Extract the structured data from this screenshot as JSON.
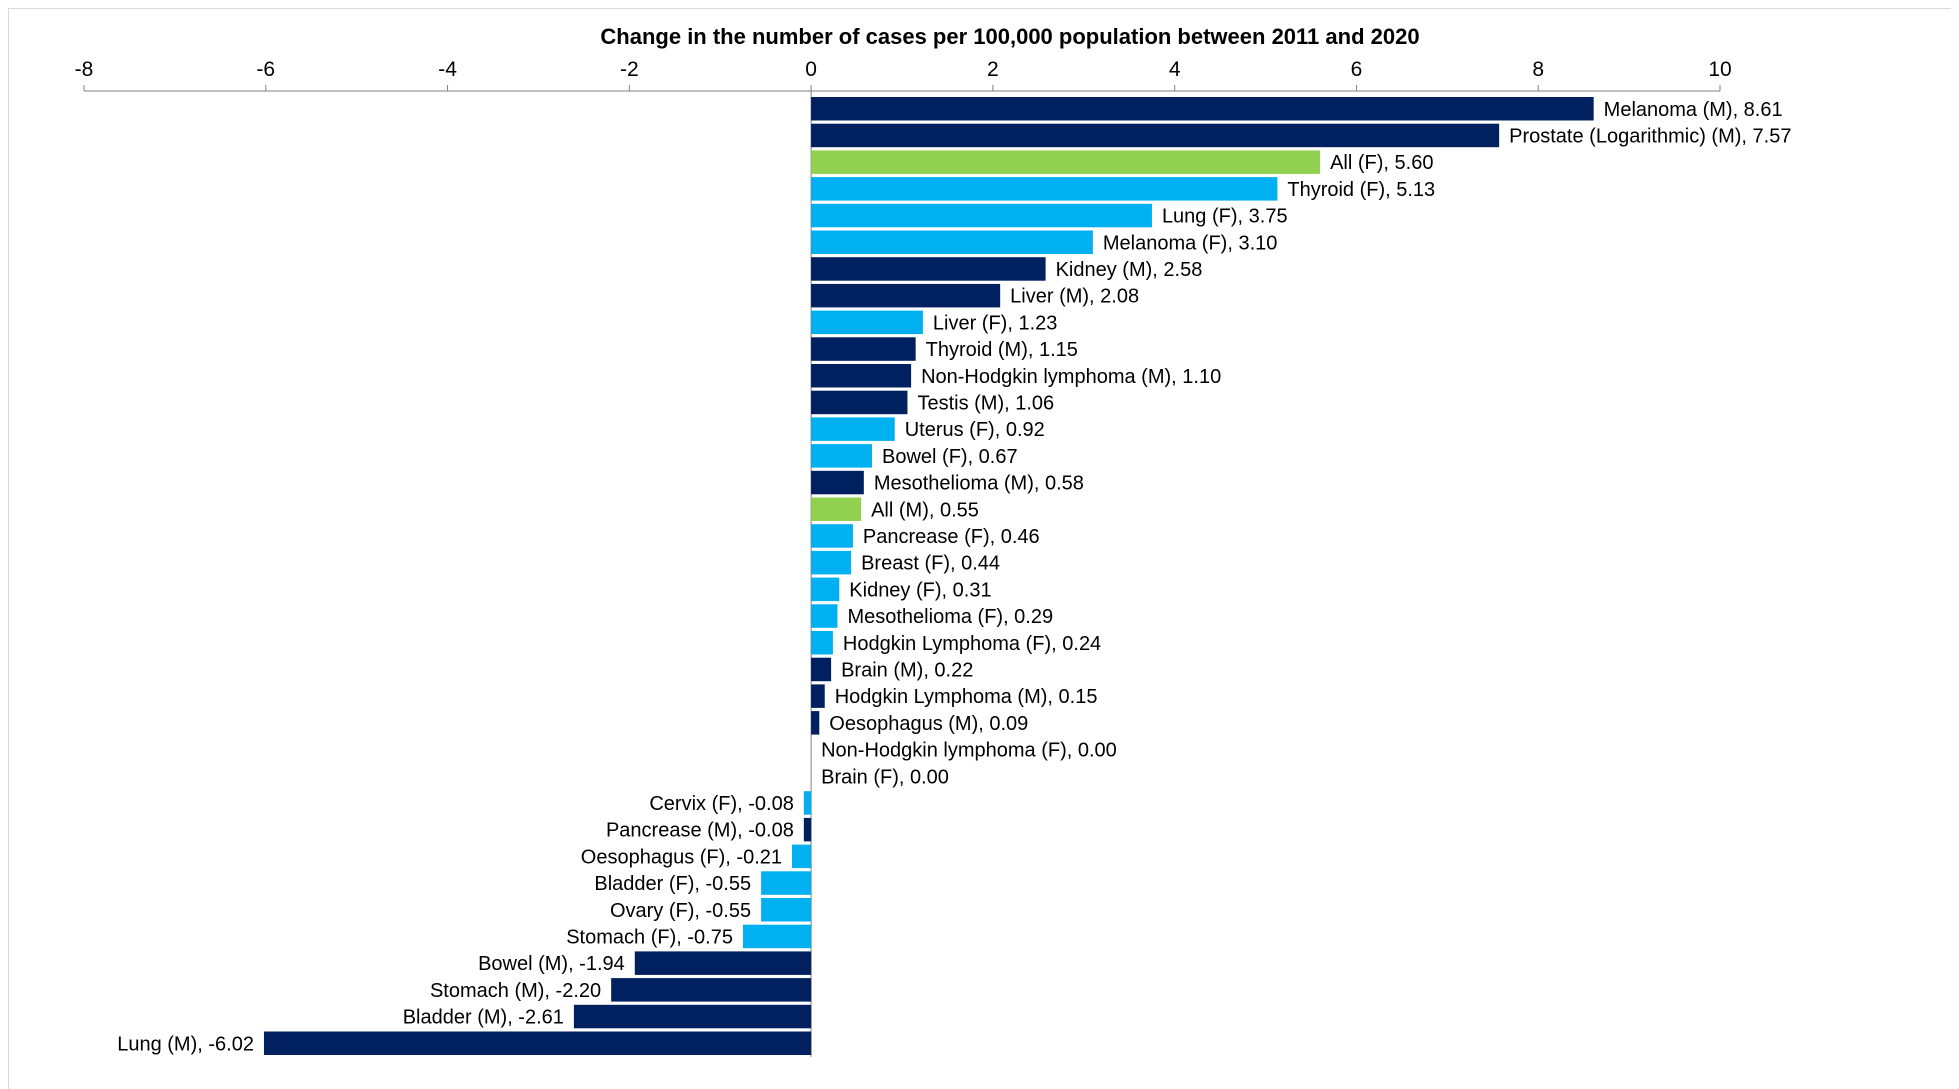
{
  "chart_data": {
    "type": "bar",
    "orientation": "horizontal",
    "title": "Change in the number of cases per 100,000 population between 2011 and 2020",
    "xlim": [
      -8,
      10
    ],
    "x_ticks": [
      "-8",
      "-6",
      "-4",
      "-2",
      "0",
      "2",
      "4",
      "6",
      "8",
      "10"
    ],
    "x_tick_values": [
      -8,
      -6,
      -4,
      -2,
      0,
      2,
      4,
      6,
      8,
      10
    ],
    "axis_position": "top",
    "grid": false,
    "colors": {
      "male": "#002060",
      "female": "#00b0f0",
      "all": "#92d050"
    },
    "bars": [
      {
        "label": "Melanoma (M), 8.61",
        "value": 8.61,
        "group": "male"
      },
      {
        "label": "Prostate (Logarithmic) (M), 7.57",
        "value": 7.57,
        "group": "male"
      },
      {
        "label": "All (F), 5.60",
        "value": 5.6,
        "group": "all"
      },
      {
        "label": "Thyroid (F), 5.13",
        "value": 5.13,
        "group": "female"
      },
      {
        "label": "Lung (F), 3.75",
        "value": 3.75,
        "group": "female"
      },
      {
        "label": "Melanoma (F), 3.10",
        "value": 3.1,
        "group": "female"
      },
      {
        "label": "Kidney (M), 2.58",
        "value": 2.58,
        "group": "male"
      },
      {
        "label": "Liver (M), 2.08",
        "value": 2.08,
        "group": "male"
      },
      {
        "label": "Liver (F), 1.23",
        "value": 1.23,
        "group": "female"
      },
      {
        "label": "Thyroid (M), 1.15",
        "value": 1.15,
        "group": "male"
      },
      {
        "label": "Non-Hodgkin lymphoma (M), 1.10",
        "value": 1.1,
        "group": "male"
      },
      {
        "label": "Testis (M), 1.06",
        "value": 1.06,
        "group": "male"
      },
      {
        "label": "Uterus (F), 0.92",
        "value": 0.92,
        "group": "female"
      },
      {
        "label": "Bowel (F), 0.67",
        "value": 0.67,
        "group": "female"
      },
      {
        "label": "Mesothelioma (M), 0.58",
        "value": 0.58,
        "group": "male"
      },
      {
        "label": "All (M), 0.55",
        "value": 0.55,
        "group": "all"
      },
      {
        "label": "Pancrease (F), 0.46",
        "value": 0.46,
        "group": "female"
      },
      {
        "label": "Breast (F), 0.44",
        "value": 0.44,
        "group": "female"
      },
      {
        "label": "Kidney (F), 0.31",
        "value": 0.31,
        "group": "female"
      },
      {
        "label": "Mesothelioma (F), 0.29",
        "value": 0.29,
        "group": "female"
      },
      {
        "label": "Hodgkin Lymphoma (F), 0.24",
        "value": 0.24,
        "group": "female"
      },
      {
        "label": "Brain (M), 0.22",
        "value": 0.22,
        "group": "male"
      },
      {
        "label": "Hodgkin Lymphoma (M), 0.15",
        "value": 0.15,
        "group": "male"
      },
      {
        "label": "Oesophagus (M), 0.09",
        "value": 0.09,
        "group": "male"
      },
      {
        "label": "Non-Hodgkin lymphoma (F), 0.00",
        "value": 0.0,
        "group": "female"
      },
      {
        "label": "Brain (F), 0.00",
        "value": 0.0,
        "group": "female"
      },
      {
        "label": "Cervix (F), -0.08",
        "value": -0.08,
        "group": "female"
      },
      {
        "label": "Pancrease (M), -0.08",
        "value": -0.08,
        "group": "male"
      },
      {
        "label": "Oesophagus (F), -0.21",
        "value": -0.21,
        "group": "female"
      },
      {
        "label": "Bladder (F), -0.55",
        "value": -0.55,
        "group": "female"
      },
      {
        "label": "Ovary (F), -0.55",
        "value": -0.55,
        "group": "female"
      },
      {
        "label": "Stomach (F), -0.75",
        "value": -0.75,
        "group": "female"
      },
      {
        "label": "Bowel (M), -1.94",
        "value": -1.94,
        "group": "male"
      },
      {
        "label": "Stomach (M), -2.20",
        "value": -2.2,
        "group": "male"
      },
      {
        "label": "Bladder (M), -2.61",
        "value": -2.61,
        "group": "male"
      },
      {
        "label": "Lung (M), -6.02",
        "value": -6.02,
        "group": "male"
      }
    ]
  }
}
